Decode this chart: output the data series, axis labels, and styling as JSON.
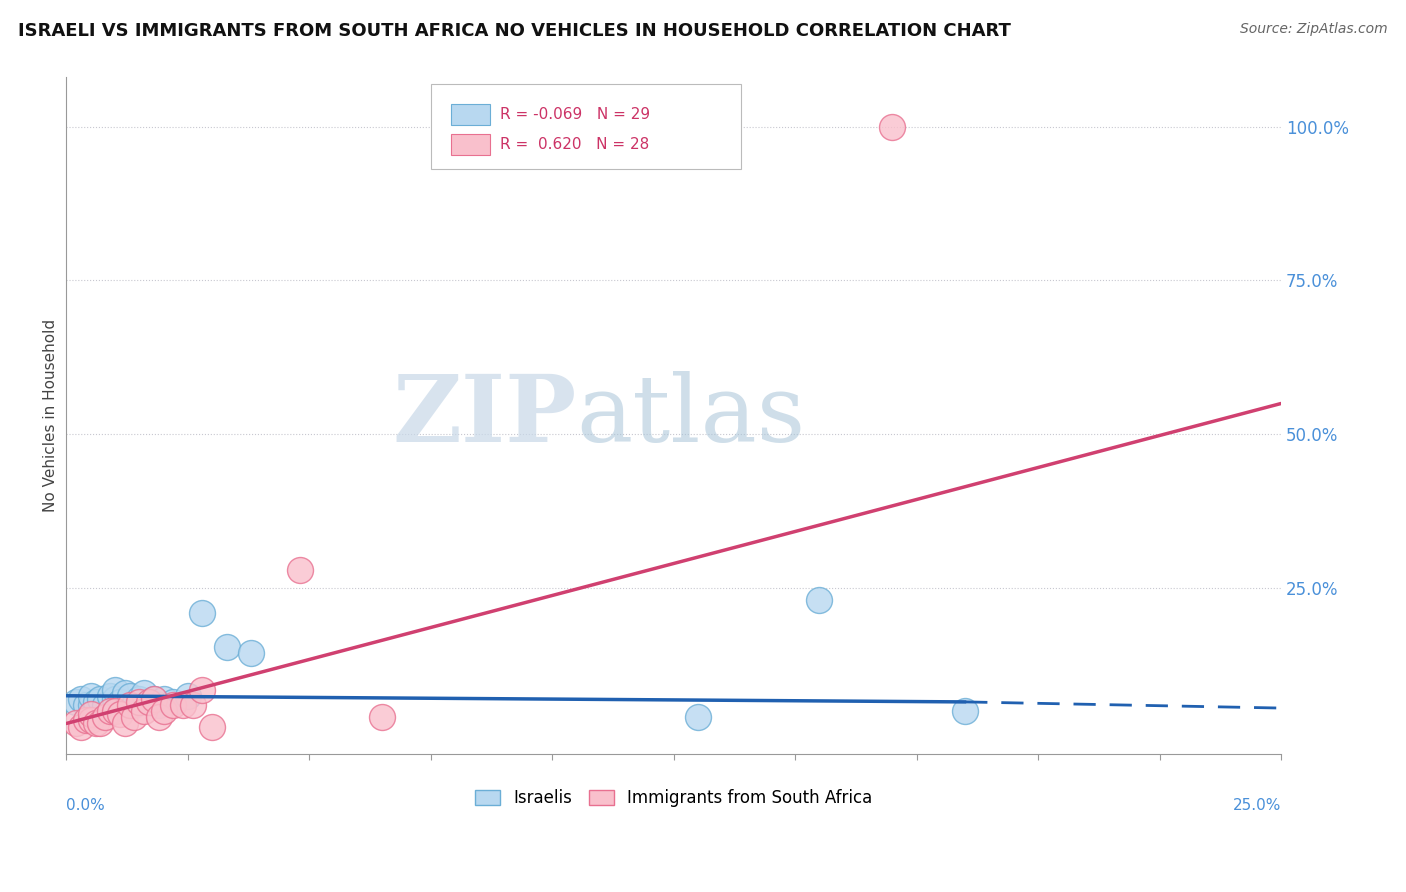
{
  "title": "ISRAELI VS IMMIGRANTS FROM SOUTH AFRICA NO VEHICLES IN HOUSEHOLD CORRELATION CHART",
  "source": "Source: ZipAtlas.com",
  "ylabel": "No Vehicles in Household",
  "ytick_labels": [
    "100.0%",
    "75.0%",
    "50.0%",
    "25.0%"
  ],
  "ytick_values": [
    1.0,
    0.75,
    0.5,
    0.25
  ],
  "xlim": [
    0.0,
    0.25
  ],
  "ylim": [
    -0.02,
    1.08
  ],
  "watermark_zip": "ZIP",
  "watermark_atlas": "atlas",
  "israelis_x": [
    0.002,
    0.003,
    0.004,
    0.005,
    0.005,
    0.006,
    0.007,
    0.008,
    0.009,
    0.01,
    0.01,
    0.011,
    0.012,
    0.013,
    0.014,
    0.015,
    0.016,
    0.017,
    0.018,
    0.019,
    0.02,
    0.022,
    0.025,
    0.028,
    0.033,
    0.038,
    0.13,
    0.155,
    0.185
  ],
  "israelis_y": [
    0.065,
    0.07,
    0.06,
    0.06,
    0.075,
    0.065,
    0.07,
    0.06,
    0.075,
    0.07,
    0.085,
    0.065,
    0.08,
    0.075,
    0.06,
    0.07,
    0.08,
    0.065,
    0.07,
    0.06,
    0.07,
    0.065,
    0.075,
    0.21,
    0.155,
    0.145,
    0.04,
    0.23,
    0.05
  ],
  "sa_x": [
    0.002,
    0.003,
    0.004,
    0.005,
    0.005,
    0.006,
    0.007,
    0.008,
    0.009,
    0.01,
    0.011,
    0.012,
    0.013,
    0.014,
    0.015,
    0.016,
    0.017,
    0.018,
    0.019,
    0.02,
    0.022,
    0.024,
    0.026,
    0.028,
    0.03,
    0.048,
    0.065,
    0.17
  ],
  "sa_y": [
    0.03,
    0.025,
    0.035,
    0.035,
    0.045,
    0.03,
    0.03,
    0.04,
    0.05,
    0.05,
    0.045,
    0.03,
    0.06,
    0.04,
    0.065,
    0.05,
    0.065,
    0.07,
    0.04,
    0.05,
    0.06,
    0.06,
    0.06,
    0.085,
    0.025,
    0.28,
    0.04,
    1.0
  ],
  "blue_line": {
    "x0": 0.0,
    "y0": 0.075,
    "x1": 0.185,
    "y1": 0.065,
    "x2": 0.25,
    "y2": 0.055
  },
  "pink_line": {
    "x0": 0.0,
    "y0": 0.03,
    "x1": 0.25,
    "y1": 0.55
  }
}
